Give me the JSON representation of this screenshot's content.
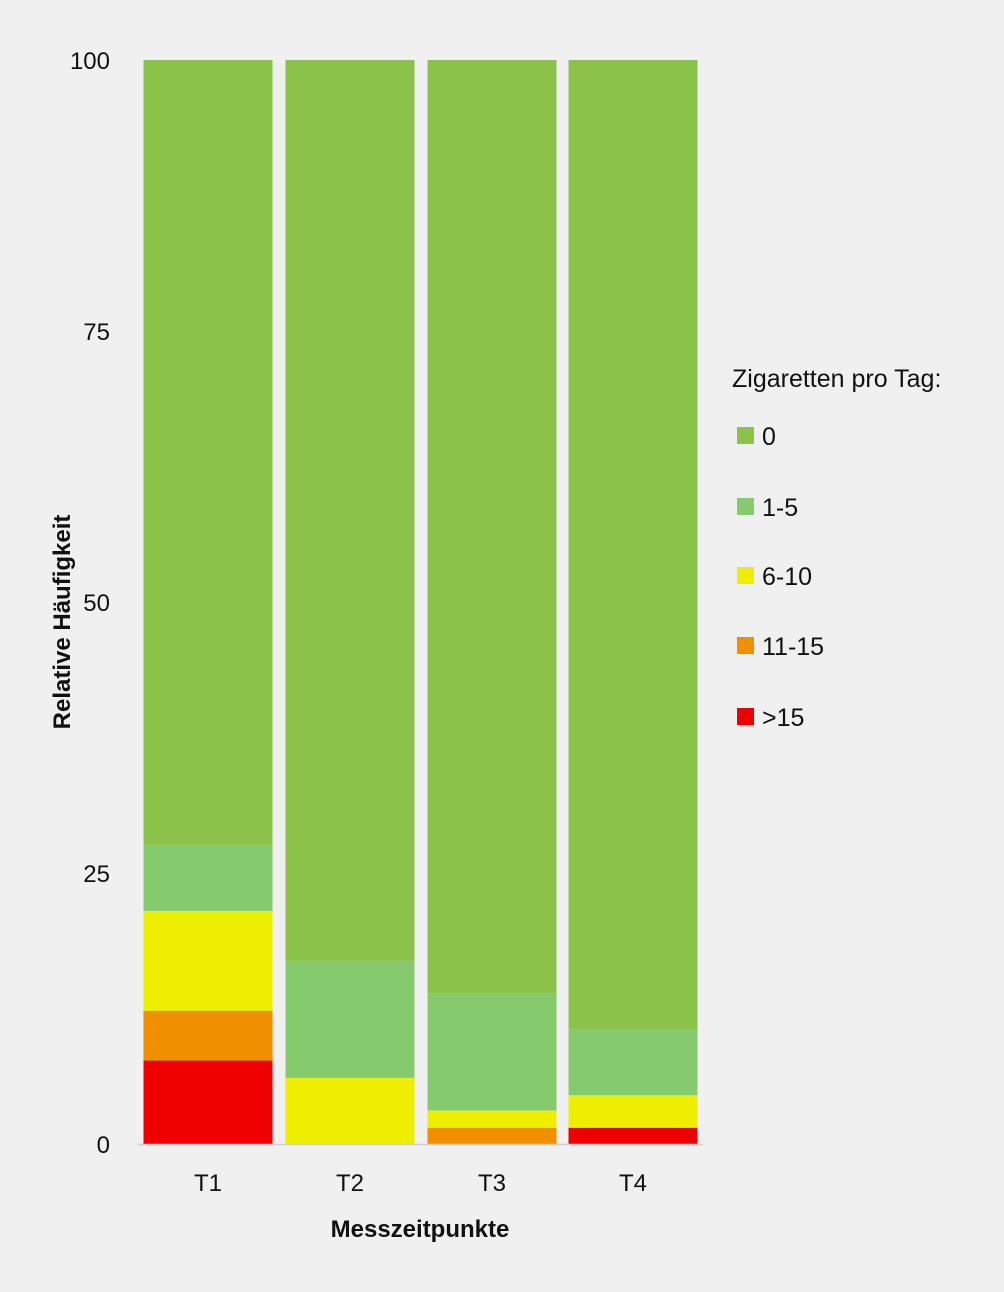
{
  "chart_data": {
    "type": "bar",
    "stacked": true,
    "title": "",
    "xlabel": "Messzeitpunkte",
    "ylabel": "Relative Häufigkeit",
    "ylim": [
      0,
      100
    ],
    "yticks": [
      0,
      25,
      50,
      75,
      100
    ],
    "grid": false,
    "legend_title": "Zigaretten pro Tag:",
    "legend_position": "right",
    "categories": [
      "T1",
      "T2",
      "T3",
      "T4"
    ],
    "series": [
      {
        "name": ">15",
        "color": "#ee0000",
        "values": [
          7.7,
          0,
          0,
          1.5
        ]
      },
      {
        "name": "11-15",
        "color": "#f09000",
        "values": [
          4.6,
          0,
          1.5,
          0
        ]
      },
      {
        "name": "6-10",
        "color": "#eeee00",
        "values": [
          9.2,
          6.1,
          1.6,
          3.0
        ]
      },
      {
        "name": "1-5",
        "color": "#86ca6e",
        "values": [
          6.1,
          10.8,
          10.8,
          6.1
        ]
      },
      {
        "name": "0",
        "color": "#8bc34a",
        "values": [
          72.4,
          83.1,
          86.1,
          89.4
        ]
      }
    ],
    "legend_order": [
      "0",
      "1-5",
      "6-10",
      "11-15",
      ">15"
    ]
  }
}
